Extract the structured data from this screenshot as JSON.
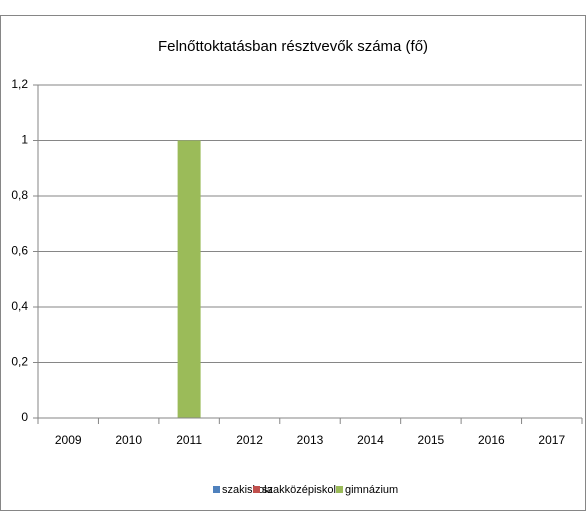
{
  "chart_data": {
    "type": "bar",
    "title": "Felnőttoktatásban résztvevők száma (fő)",
    "categories": [
      "2009",
      "2010",
      "2011",
      "2012",
      "2013",
      "2014",
      "2015",
      "2016",
      "2017"
    ],
    "series": [
      {
        "name": "szakiskola",
        "color": "#4f81bd",
        "values": [
          0,
          0,
          0,
          0,
          0,
          0,
          0,
          0,
          0
        ]
      },
      {
        "name": "szakközépiskola",
        "color": "#c0504d",
        "values": [
          0,
          0,
          0,
          0,
          0,
          0,
          0,
          0,
          0
        ]
      },
      {
        "name": "gimnázium",
        "color": "#9bbb59",
        "values": [
          0,
          0,
          1,
          0,
          0,
          0,
          0,
          0,
          0
        ]
      }
    ],
    "ylim": [
      0,
      1.2
    ],
    "yticks": [
      0,
      {
        "value": 0.2,
        "label": "0,2"
      },
      {
        "value": 0.4,
        "label": "0,4"
      },
      {
        "value": 0.6,
        "label": "0,6"
      },
      {
        "value": 0.8,
        "label": "0,8"
      },
      1,
      {
        "value": 1.2,
        "label": "1,2"
      }
    ],
    "grid": true,
    "legend": "bottom"
  }
}
